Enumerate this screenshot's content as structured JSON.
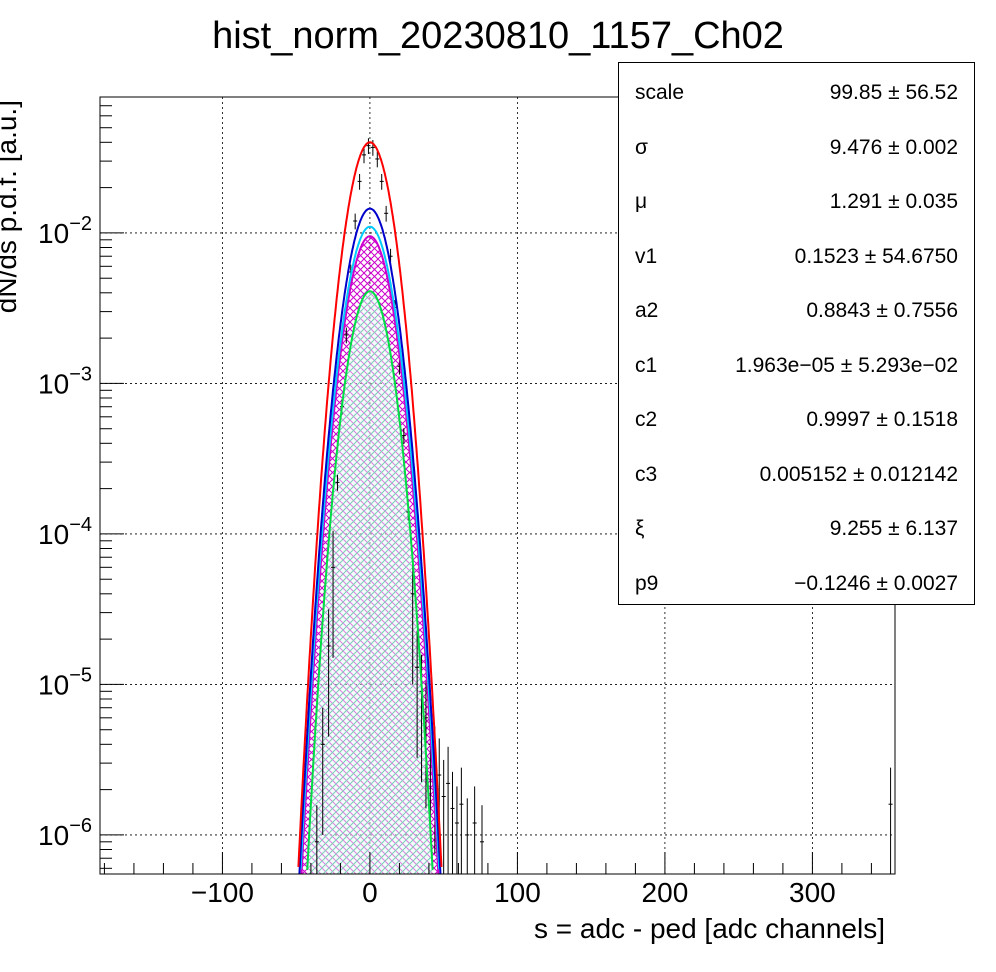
{
  "chart_data": {
    "type": "histogram",
    "title": "hist_norm_20230810_1157_Ch02",
    "xlabel": "s = adc - ped [adc channels]",
    "ylabel": "dN/ds p.d.f. [a.u.]",
    "xlim": [
      -183,
      356
    ],
    "ylim": [
      5.5e-07,
      0.08
    ],
    "yscale": "log",
    "grid": true,
    "x_ticks": [
      -100,
      0,
      100,
      200,
      300
    ],
    "x_tick_labels": [
      "−100",
      "0",
      "100",
      "200",
      "300"
    ],
    "y_ticks": [
      1e-06,
      1e-05,
      0.0001,
      0.001,
      0.01
    ],
    "y_tick_labels": [
      {
        "base": "10",
        "exp": "−6"
      },
      {
        "base": "10",
        "exp": "−5"
      },
      {
        "base": "10",
        "exp": "−4"
      },
      {
        "base": "10",
        "exp": "−3"
      },
      {
        "base": "10",
        "exp": "−2"
      }
    ],
    "curves": [
      {
        "color": "#ff0000",
        "peak": 0.04,
        "mu": 0,
        "sigma": 10.3,
        "fill": null
      },
      {
        "color": "#0000cc",
        "peak": 0.0145,
        "mu": 0,
        "sigma": 10.6,
        "fill": null
      },
      {
        "color": "#00ccff",
        "peak": 0.011,
        "mu": 0,
        "sigma": 10.6,
        "fill": null
      },
      {
        "color": "#cc00cc",
        "peak": 0.0095,
        "mu": 0,
        "sigma": 10.5,
        "fill": "magenta-hatch"
      },
      {
        "color": "#00dd44",
        "peak": 0.0041,
        "mu": 0,
        "sigma": 10.1,
        "fill": "green-hatch"
      }
    ],
    "data_points": [
      {
        "x": -36,
        "y": 9e-07
      },
      {
        "x": -32,
        "y": 4e-06
      },
      {
        "x": -28,
        "y": 1.8e-05
      },
      {
        "x": -25,
        "y": 6e-05
      },
      {
        "x": -22,
        "y": 0.00022
      },
      {
        "x": -19,
        "y": 0.0007
      },
      {
        "x": -16,
        "y": 0.0021
      },
      {
        "x": -13,
        "y": 0.0055
      },
      {
        "x": -10,
        "y": 0.012
      },
      {
        "x": -7,
        "y": 0.022
      },
      {
        "x": -4,
        "y": 0.033
      },
      {
        "x": -1,
        "y": 0.038
      },
      {
        "x": 2,
        "y": 0.037
      },
      {
        "x": 5,
        "y": 0.031
      },
      {
        "x": 8,
        "y": 0.022
      },
      {
        "x": 11,
        "y": 0.0135
      },
      {
        "x": 14,
        "y": 0.007
      },
      {
        "x": 17,
        "y": 0.0032
      },
      {
        "x": 20,
        "y": 0.0013
      },
      {
        "x": 23,
        "y": 0.00045
      },
      {
        "x": 26,
        "y": 0.00014
      },
      {
        "x": 29,
        "y": 4e-05
      },
      {
        "x": 32,
        "y": 1.3e-05
      },
      {
        "x": 35,
        "y": 9e-06
      },
      {
        "x": 38,
        "y": 6e-06
      },
      {
        "x": 41,
        "y": 4e-06
      },
      {
        "x": 44,
        "y": 3e-06
      },
      {
        "x": 47,
        "y": 2.5e-06
      },
      {
        "x": 50,
        "y": 1.8e-06
      },
      {
        "x": 53,
        "y": 2.2e-06
      },
      {
        "x": 56,
        "y": 1.5e-06
      },
      {
        "x": 59,
        "y": 1.2e-06
      },
      {
        "x": 62,
        "y": 1.6e-06
      },
      {
        "x": 66,
        "y": 1e-06
      },
      {
        "x": 71,
        "y": 1.2e-06
      },
      {
        "x": 76,
        "y": 9e-07
      },
      {
        "x": 353,
        "y": 1.6e-06
      }
    ],
    "legend_position": "top-right",
    "stats": [
      {
        "name": "scale",
        "value": "99.85 ± 56.52"
      },
      {
        "name": "σ",
        "value": "9.476 ± 0.002"
      },
      {
        "name": "μ",
        "value": "1.291 ± 0.035"
      },
      {
        "name": "v1",
        "value": "0.1523 ± 54.6750"
      },
      {
        "name": "a2",
        "value": "0.8843 ± 0.7556"
      },
      {
        "name": "c1",
        "value": "1.963e−05 ± 5.293e−02"
      },
      {
        "name": "c2",
        "value": "0.9997 ± 0.1518"
      },
      {
        "name": "c3",
        "value": "0.005152 ± 0.012142"
      },
      {
        "name": "ξ",
        "value": "9.255 ± 6.137"
      },
      {
        "name": "p9",
        "value": "−0.1246 ± 0.0027"
      }
    ]
  }
}
